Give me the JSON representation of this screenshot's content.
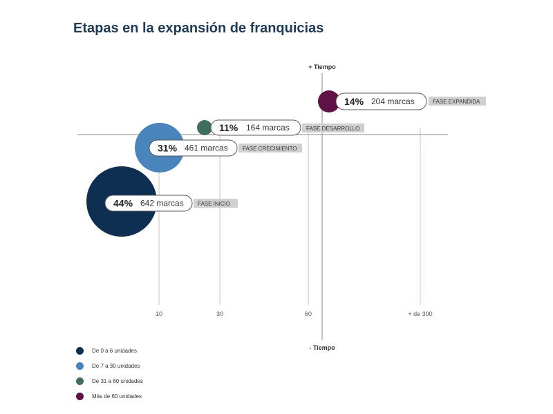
{
  "chart_data": {
    "type": "bubble",
    "title": "Etapas en la expansión de franquicias",
    "y_axis": {
      "top_label": "+ Tiempo",
      "bottom_label": "- Tiempo"
    },
    "x_ticks": [
      "10",
      "30",
      "60",
      "+ de 300"
    ],
    "bubbles": [
      {
        "phase": "FASE INICIO",
        "percent": "44%",
        "count": "642 marcas",
        "group": "De 0 a 6 unidades",
        "color": "#0e2f52"
      },
      {
        "phase": "FASE CRECIMIENTO",
        "percent": "31%",
        "count": "461 marcas",
        "group": "De 7 a 30 unidades",
        "color": "#4a84bd"
      },
      {
        "phase": "FASE DESARROLLO",
        "percent": "11%",
        "count": "164 marcas",
        "group": "De 31 a 60 unidades",
        "color": "#3f6e5e"
      },
      {
        "phase": "FASE EXPANDIDA",
        "percent": "14%",
        "count": "204 marcas",
        "group": "Más de 60 unidades",
        "color": "#5e1245"
      }
    ],
    "legend": [
      {
        "label": "De 0 a 6 unidades",
        "color": "#0e2f52"
      },
      {
        "label": "De 7 a 30 unidades",
        "color": "#4a84bd"
      },
      {
        "label": "De 31 a 60 unidades",
        "color": "#3f6e5e"
      },
      {
        "label": "Más de 60 unidades",
        "color": "#5e1245"
      }
    ]
  }
}
